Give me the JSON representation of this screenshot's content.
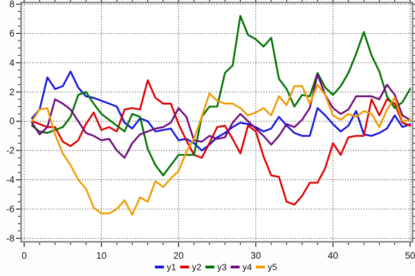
{
  "chart_data": {
    "type": "line",
    "title": "",
    "xlabel": "",
    "ylabel": "",
    "xlim": [
      0,
      50
    ],
    "ylim": [
      -8,
      8
    ],
    "grid": "dotted",
    "legend_position": "bottom-center",
    "x_major_ticks": [
      0,
      10,
      20,
      30,
      40,
      50
    ],
    "x_minor_step": 2,
    "y_major_ticks": [
      -8,
      -6,
      -4,
      -2,
      0,
      2,
      4,
      6,
      8
    ],
    "y_minor_step": 0.5,
    "x": [
      1,
      2,
      3,
      4,
      5,
      6,
      7,
      8,
      9,
      10,
      11,
      12,
      13,
      14,
      15,
      16,
      17,
      18,
      19,
      20,
      21,
      22,
      23,
      24,
      25,
      26,
      27,
      28,
      29,
      30,
      31,
      32,
      33,
      34,
      35,
      36,
      37,
      38,
      39,
      40,
      41,
      42,
      43,
      44,
      45,
      46,
      47,
      48,
      49,
      50
    ],
    "series": [
      {
        "name": "y1",
        "color": "#1414dc",
        "values": [
          0.2,
          0.8,
          3.0,
          2.2,
          2.4,
          3.4,
          2.3,
          1.7,
          1.6,
          1.4,
          1.2,
          1.0,
          -0.1,
          -0.5,
          0.2,
          0.0,
          -0.7,
          -0.6,
          -0.5,
          -1.3,
          -1.2,
          -1.5,
          -2.0,
          -1.6,
          -1.1,
          -0.8,
          -0.4,
          -0.1,
          -0.2,
          -0.4,
          -0.7,
          -0.5,
          0.3,
          -0.3,
          -0.8,
          -1.0,
          -1.0,
          0.9,
          0.4,
          -0.2,
          -0.7,
          -0.3,
          0.7,
          -0.9,
          -1.0,
          -0.8,
          -0.5,
          0.4,
          -0.4,
          -0.2
        ]
      },
      {
        "name": "y2",
        "color": "#de0000",
        "values": [
          0.0,
          -0.2,
          -0.4,
          -0.4,
          -1.4,
          -1.7,
          -1.3,
          -0.2,
          0.6,
          -0.6,
          -0.4,
          -0.7,
          0.8,
          0.9,
          0.8,
          2.8,
          1.6,
          1.2,
          1.2,
          -0.2,
          -1.3,
          -2.3,
          -2.5,
          -1.5,
          -0.4,
          -0.3,
          -1.2,
          -2.2,
          -0.3,
          -0.7,
          -2.4,
          -3.7,
          -3.8,
          -5.5,
          -5.7,
          -5.1,
          -4.2,
          -4.2,
          -3.2,
          -1.5,
          -2.3,
          -1.1,
          -1.0,
          -1.0,
          1.5,
          0.4,
          1.5,
          1.2,
          -0.1,
          -0.3
        ]
      },
      {
        "name": "y3",
        "color": "#007200",
        "values": [
          -0.3,
          -0.7,
          -0.8,
          -0.6,
          -0.4,
          0.3,
          1.8,
          2.0,
          1.2,
          0.5,
          0.1,
          -0.3,
          -0.7,
          0.5,
          0.3,
          -1.9,
          -3.0,
          -3.7,
          -3.0,
          -2.3,
          -2.3,
          -2.3,
          0.3,
          1.0,
          1.0,
          3.3,
          3.8,
          7.2,
          5.9,
          5.6,
          5.1,
          5.7,
          2.9,
          2.2,
          1.0,
          1.8,
          1.7,
          3.3,
          2.3,
          1.8,
          2.4,
          3.3,
          4.6,
          6.1,
          4.5,
          3.4,
          1.7,
          0.9,
          1.3,
          2.2
        ]
      },
      {
        "name": "y4",
        "color": "#700a7c",
        "values": [
          -0.1,
          -0.9,
          -0.4,
          1.5,
          1.2,
          0.8,
          0.0,
          -0.8,
          -1.0,
          -1.3,
          -1.2,
          -2.0,
          -2.5,
          -1.5,
          -0.9,
          -0.7,
          -0.5,
          -0.4,
          -0.1,
          0.9,
          0.3,
          -1.3,
          -1.4,
          -1.0,
          -1.2,
          -1.1,
          -0.1,
          0.5,
          0.0,
          -0.5,
          -1.0,
          -1.6,
          -1.0,
          -0.2,
          -0.4,
          0.1,
          0.9,
          3.2,
          1.8,
          0.9,
          0.5,
          0.8,
          1.7,
          1.7,
          1.7,
          1.5,
          2.5,
          1.8,
          0.4,
          0.1
        ]
      },
      {
        "name": "y5",
        "color": "#ef9b00",
        "values": [
          0.0,
          0.8,
          0.9,
          -0.9,
          -2.2,
          -3.0,
          -4.0,
          -4.6,
          -5.9,
          -6.3,
          -6.3,
          -6.0,
          -5.4,
          -6.4,
          -5.2,
          -5.5,
          -4.1,
          -4.5,
          -3.9,
          -3.4,
          -2.1,
          -1.2,
          0.3,
          1.9,
          1.4,
          1.2,
          1.2,
          0.9,
          0.4,
          0.6,
          0.9,
          0.4,
          1.7,
          1.1,
          2.4,
          2.4,
          1.2,
          2.5,
          1.8,
          0.4,
          0.1,
          0.5,
          0.3,
          0.7,
          0.5,
          -0.4,
          0.8,
          1.6,
          0.0,
          0.1
        ]
      }
    ]
  },
  "axes": {
    "x_tick_labels": [
      "0",
      "10",
      "20",
      "30",
      "40",
      "50"
    ],
    "y_tick_labels": [
      "-8",
      "-6",
      "-4",
      "-2",
      "0",
      "2",
      "4",
      "6",
      "8"
    ]
  },
  "legend": {
    "items": [
      {
        "label": "y1",
        "color": "#1414dc"
      },
      {
        "label": "y2",
        "color": "#de0000"
      },
      {
        "label": "y3",
        "color": "#007200"
      },
      {
        "label": "y4",
        "color": "#700a7c"
      },
      {
        "label": "y5",
        "color": "#ef9b00"
      }
    ]
  },
  "style": {
    "border_color": "#757575",
    "tick_color": "#000000",
    "grid_color": "#222222",
    "label_color": "#111111",
    "background": "#fdfdfd"
  }
}
